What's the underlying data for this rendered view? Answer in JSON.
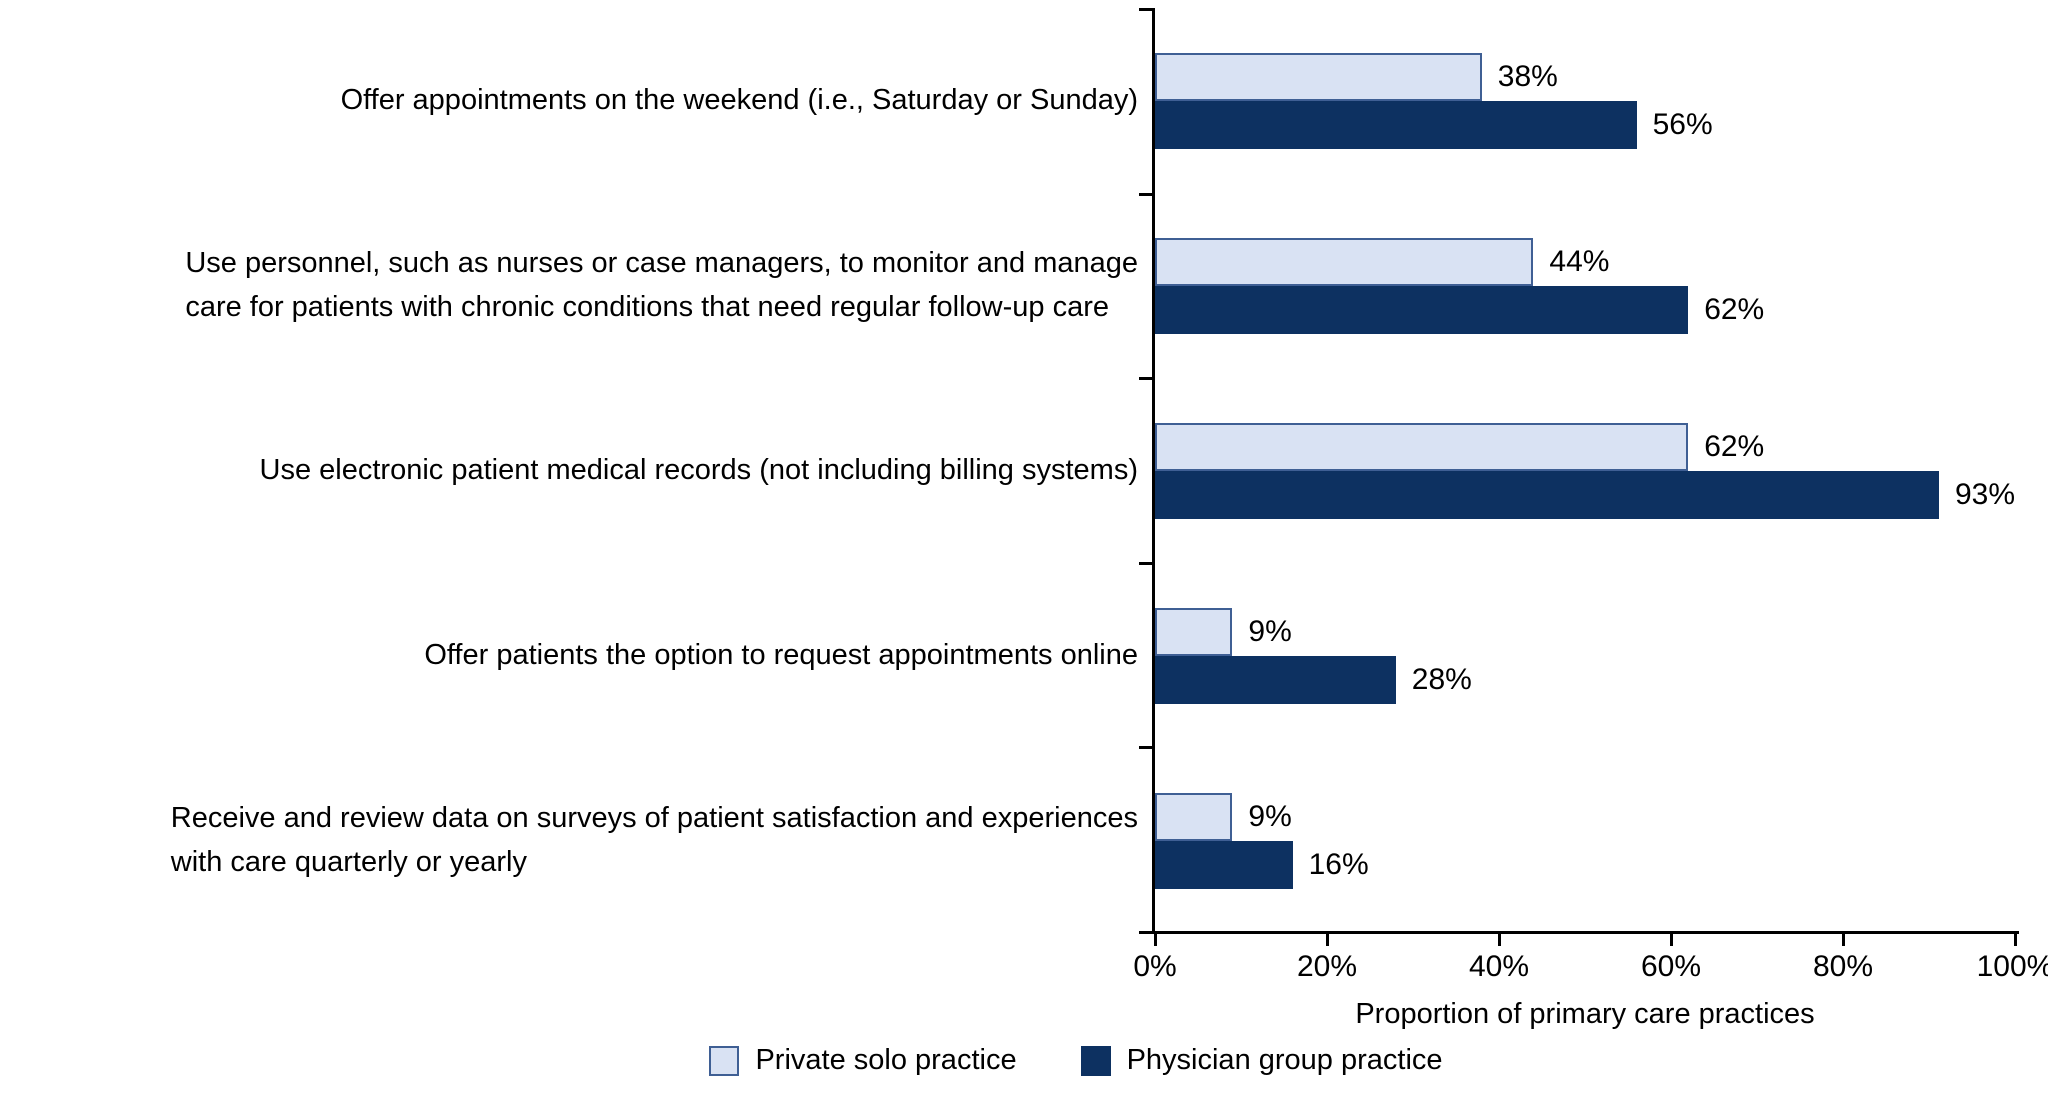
{
  "chart_data": {
    "type": "bar",
    "orientation": "horizontal",
    "title": "",
    "categories": [
      "Offer appointments on the weekend (i.e., Saturday or Sunday)",
      "Use personnel, such as nurses or case managers, to monitor and manage\ncare for patients with chronic conditions that need regular follow-up care",
      "Use electronic patient medical records (not including billing systems)",
      "Offer patients the option to request appointments online",
      "Receive and review data on surveys of patient satisfaction and experiences\nwith care quarterly or yearly"
    ],
    "series": [
      {
        "name": "Private solo practice",
        "values": [
          38,
          44,
          62,
          9,
          9
        ],
        "labels": [
          "38%",
          "44%",
          "62%",
          "9%",
          "9%"
        ],
        "fill": "#d9e2f3",
        "border": "#3f5f94"
      },
      {
        "name": "Physician group practice",
        "values": [
          56,
          62,
          93,
          28,
          16
        ],
        "labels": [
          "56%",
          "62%",
          "93%",
          "28%",
          "16%"
        ],
        "fill": "#0d3161",
        "border": "#0d3161"
      }
    ],
    "xlabel": "Proportion of primary care practices",
    "x_ticks": [
      "0%",
      "20%",
      "40%",
      "60%",
      "80%",
      "100%"
    ],
    "xlim": [
      0,
      100
    ],
    "grid": false,
    "legend_position": "bottom",
    "axis_color": "#000000",
    "text_color": "#000000",
    "background": "#ffffff"
  }
}
